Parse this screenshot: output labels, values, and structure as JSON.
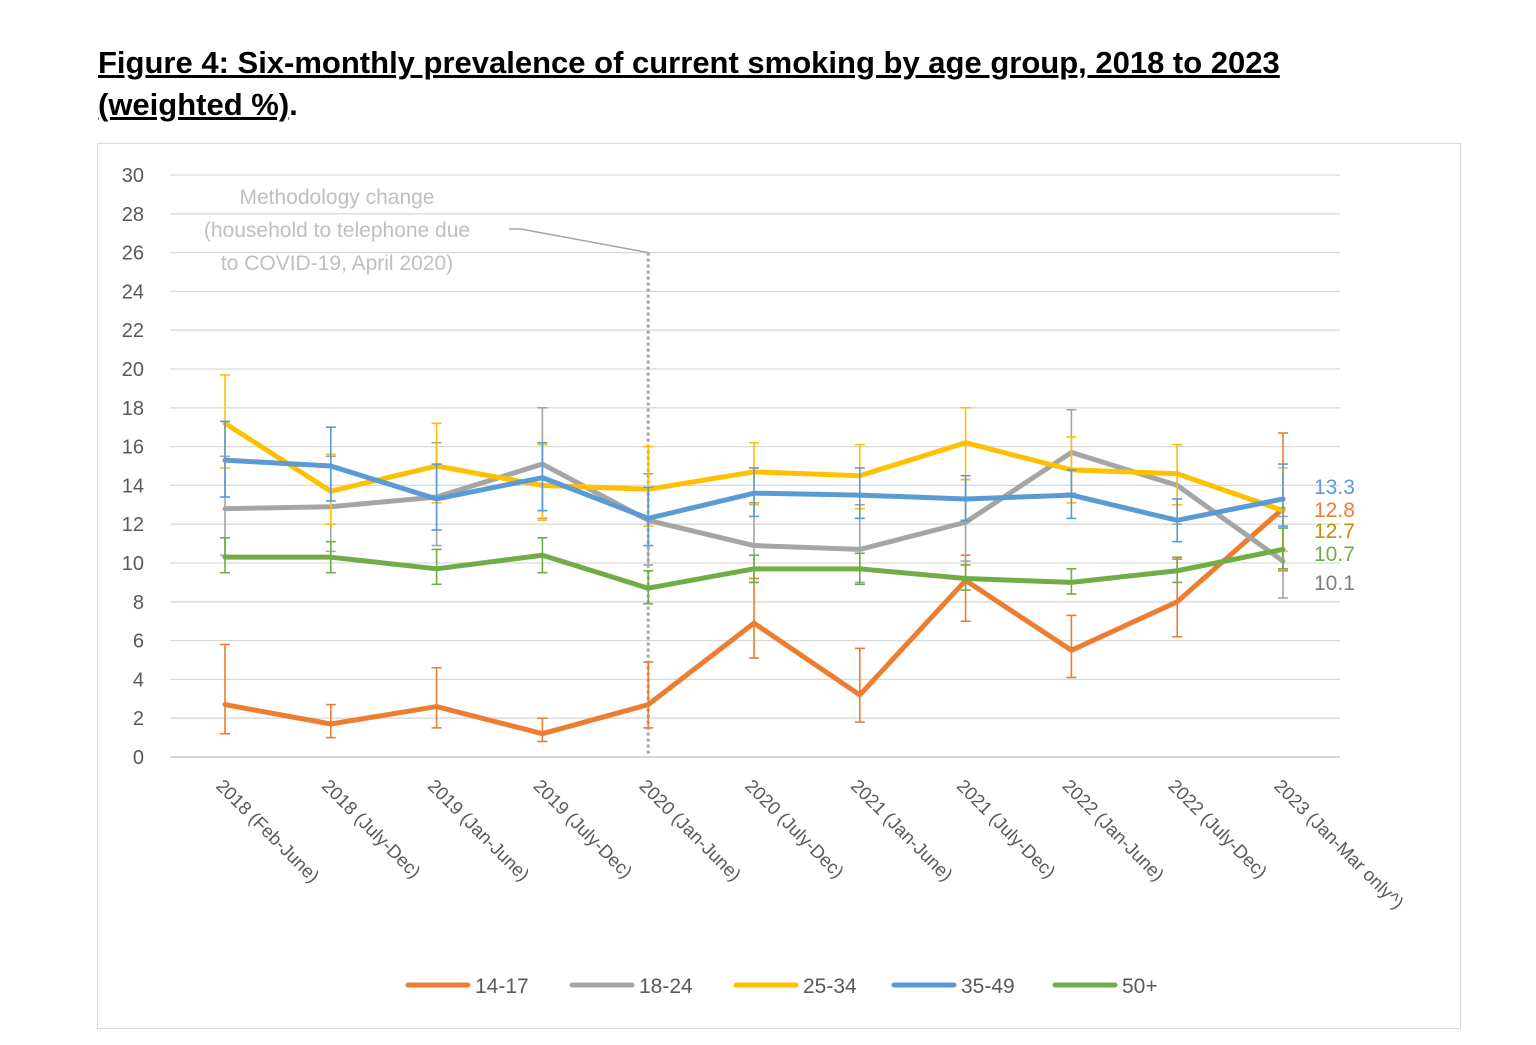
{
  "title": {
    "line1": "Figure 4: Six-monthly prevalence of current smoking by age group, 2018 to 2023",
    "line2_underlined": "(weighted %)",
    "line2_tail": "."
  },
  "chart_data": {
    "type": "line",
    "title": "Figure 4: Six-monthly prevalence of current smoking by age group, 2018 to 2023 (weighted %).",
    "xlabel": "",
    "ylabel": "",
    "ylim": [
      0,
      30
    ],
    "yticks": [
      0,
      2,
      4,
      6,
      8,
      10,
      12,
      14,
      16,
      18,
      20,
      22,
      24,
      26,
      28,
      30
    ],
    "grid": true,
    "legend_position": "bottom",
    "categories": [
      "2018 (Feb-June)",
      "2018 (July-Dec)",
      "2019 (Jan-June)",
      "2019 (July-Dec)",
      "2020 (Jan-June)",
      "2020 (July-Dec)",
      "2021 (Jan-June)",
      "2021 (July-Dec)",
      "2022 (Jan-June)",
      "2022 (July-Dec)",
      "2023 (Jan-Mar only^)"
    ],
    "series": [
      {
        "name": "14-17",
        "color": "#ed7d31",
        "values": [
          2.7,
          1.7,
          2.6,
          1.2,
          2.7,
          6.9,
          3.2,
          9.1,
          5.5,
          8.0,
          12.8
        ],
        "err_low": [
          1.2,
          1.0,
          1.5,
          0.8,
          1.5,
          5.1,
          1.8,
          7.0,
          4.1,
          6.2,
          9.6
        ],
        "err_high": [
          5.8,
          2.7,
          4.6,
          2.0,
          4.9,
          9.2,
          5.6,
          10.4,
          7.3,
          10.2,
          16.7
        ],
        "end_label": "12.8"
      },
      {
        "name": "18-24",
        "color": "#a5a5a5",
        "values": [
          12.8,
          12.9,
          13.4,
          15.1,
          12.2,
          10.9,
          10.7,
          12.1,
          15.7,
          14.0,
          10.1
        ],
        "err_low": [
          10.4,
          10.6,
          10.9,
          12.3,
          9.9,
          9.0,
          9.0,
          10.1,
          13.6,
          12.0,
          8.2
        ],
        "err_high": [
          15.5,
          15.5,
          16.2,
          18.0,
          14.6,
          13.1,
          13.0,
          14.3,
          17.9,
          16.1,
          12.4
        ],
        "end_label": "10.1"
      },
      {
        "name": "25-34",
        "color": "#ffc000",
        "values": [
          17.2,
          13.7,
          15.0,
          14.0,
          13.8,
          14.7,
          14.5,
          16.2,
          14.8,
          14.6,
          12.7
        ],
        "err_low": [
          14.9,
          12.0,
          13.1,
          12.2,
          11.9,
          13.0,
          12.8,
          14.3,
          13.1,
          13.0,
          10.6
        ],
        "err_high": [
          19.7,
          15.6,
          17.2,
          16.1,
          16.0,
          16.2,
          16.1,
          18.0,
          16.5,
          16.1,
          14.9
        ],
        "end_label": "12.7"
      },
      {
        "name": "35-49",
        "color": "#5b9bd5",
        "values": [
          15.3,
          15.0,
          13.3,
          14.4,
          12.3,
          13.6,
          13.5,
          13.3,
          13.5,
          12.2,
          13.3
        ],
        "err_low": [
          13.4,
          13.2,
          11.7,
          12.7,
          10.9,
          12.4,
          12.3,
          12.2,
          12.3,
          11.1,
          11.9
        ],
        "err_high": [
          17.3,
          17.0,
          15.1,
          16.2,
          13.9,
          14.9,
          14.9,
          14.5,
          14.8,
          13.3,
          15.1
        ],
        "end_label": "13.3"
      },
      {
        "name": "50+",
        "color": "#70ad47",
        "values": [
          10.3,
          10.3,
          9.7,
          10.4,
          8.7,
          9.7,
          9.7,
          9.2,
          9.0,
          9.6,
          10.7
        ],
        "err_low": [
          9.5,
          9.5,
          8.9,
          9.5,
          7.9,
          9.0,
          8.9,
          8.6,
          8.4,
          9.0,
          9.7
        ],
        "err_high": [
          11.3,
          11.1,
          10.7,
          11.3,
          9.6,
          10.4,
          10.5,
          9.9,
          9.7,
          10.3,
          11.8
        ],
        "end_label": "10.7"
      }
    ],
    "annotations": [
      {
        "lines": [
          "Methodology change",
          "(household to telephone due",
          "to COVID-19, April 2020)"
        ],
        "at_category": "2020 (Jan-June)",
        "marker": "dotted vertical line",
        "y_top": 26
      }
    ]
  }
}
